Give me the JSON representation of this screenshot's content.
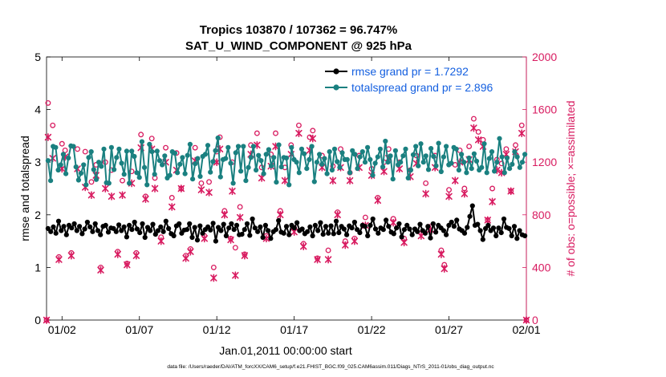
{
  "chart_data": {
    "type": "line",
    "title_line1": "Tropics 103870 / 107362 = 96.747%",
    "title_line2": "SAT_U_WIND_COMPONENT @ 925 hPa",
    "xlabel": "Jan.01,2011 00:00:00 start",
    "ylabel_left": "rmse and totalspread",
    "ylabel_right": "# of obs: o=possible; ×=assimilated",
    "footer": "data file: /Users/raeder/DAI/ATM_forcXX/CAM6_setup/f.e21.FHIST_BGC.f09_025.CAM6assim.011/Diags_NTrS_2011-01/obs_diag_output.nc",
    "xlim": [
      0,
      31
    ],
    "ylim_left": [
      0,
      5
    ],
    "ylim_right": [
      0,
      2000
    ],
    "x_ticks": [
      {
        "v": 1,
        "label": "01/02"
      },
      {
        "v": 6,
        "label": "01/07"
      },
      {
        "v": 11,
        "label": "01/12"
      },
      {
        "v": 16,
        "label": "01/17"
      },
      {
        "v": 21,
        "label": "01/22"
      },
      {
        "v": 26,
        "label": "01/27"
      },
      {
        "v": 31,
        "label": "02/01"
      }
    ],
    "y_ticks_left": [
      "0",
      "1",
      "2",
      "3",
      "4",
      "5"
    ],
    "y_ticks_right": [
      "0",
      "400",
      "800",
      "1200",
      "1600",
      "2000"
    ],
    "legend": [
      {
        "label": "rmse grand pr = 1.7292",
        "color": "#000000"
      },
      {
        "label": "totalspread grand pr = 2.896",
        "color": "#1a8080"
      }
    ],
    "series": [
      {
        "name": "rmse",
        "color": "#000000",
        "values": [
          1.74,
          1.68,
          1.77,
          1.65,
          1.88,
          1.7,
          1.78,
          1.62,
          1.8,
          1.75,
          1.83,
          1.7,
          1.78,
          1.64,
          1.73,
          1.86,
          1.77,
          1.68,
          1.83,
          1.7,
          1.62,
          1.78,
          1.8,
          1.67,
          1.75,
          1.74,
          1.68,
          1.81,
          1.7,
          1.77,
          1.58,
          1.8,
          1.72,
          1.86,
          1.73,
          1.66,
          1.83,
          1.57,
          1.76,
          1.7,
          1.82,
          1.63,
          1.7,
          1.77,
          1.68,
          1.88,
          1.74,
          1.64,
          1.6,
          1.79,
          1.83,
          1.65,
          1.71,
          1.72,
          1.83,
          1.57,
          1.76,
          1.52,
          1.79,
          1.65,
          1.72,
          1.77,
          1.71,
          1.84,
          1.5,
          1.76,
          1.7,
          1.82,
          1.6,
          1.75,
          1.83,
          1.72,
          1.8,
          1.62,
          1.63,
          1.72,
          1.83,
          1.61,
          1.92,
          1.75,
          1.68,
          1.77,
          1.57,
          1.8,
          1.7,
          1.55,
          1.68,
          1.72,
          1.89,
          1.67,
          1.65,
          1.78,
          1.62,
          1.8,
          1.75,
          1.85,
          1.7,
          1.73,
          1.64,
          1.68,
          1.77,
          1.6,
          1.8,
          1.7,
          1.85,
          1.63,
          1.78,
          1.65,
          1.79,
          1.64,
          1.88,
          1.66,
          1.78,
          1.73,
          1.62,
          1.79,
          1.75,
          1.86,
          1.72,
          1.66,
          1.8,
          1.78,
          1.6,
          1.8,
          1.92,
          1.73,
          1.65,
          1.75,
          1.72,
          1.9,
          1.78,
          1.67,
          1.64,
          1.75,
          1.83,
          1.58,
          1.72,
          1.8,
          1.73,
          1.62,
          1.73,
          1.68,
          1.82,
          1.7,
          1.65,
          1.78,
          1.56,
          1.83,
          1.67,
          1.8,
          1.75,
          1.7,
          1.62,
          1.8,
          1.86,
          1.78,
          1.9,
          1.73,
          1.7,
          1.65,
          1.76,
          1.97,
          2.17,
          1.8,
          1.82,
          1.7,
          1.53,
          1.74,
          1.8,
          1.7,
          1.75,
          1.6,
          1.75,
          1.66,
          1.92,
          1.76,
          1.74,
          1.6,
          1.78,
          1.55,
          1.7,
          1.62,
          1.6
        ]
      },
      {
        "name": "totalspread",
        "color": "#1a8080",
        "values": [
          3.03,
          2.65,
          3.3,
          3.28,
          2.85,
          2.95,
          3.15,
          2.78,
          3.08,
          3.31,
          3.3,
          2.91,
          2.66,
          2.79,
          2.95,
          2.57,
          3.09,
          3.2,
          2.86,
          2.67,
          3.0,
          2.92,
          3.25,
          2.61,
          2.6,
          3.28,
          2.86,
          3.09,
          3.25,
          2.98,
          2.77,
          3.21,
          2.6,
          3.21,
          3.11,
          2.8,
          2.71,
          3.39,
          2.9,
          2.57,
          3.34,
          3.2,
          2.77,
          3.21,
          3.03,
          2.95,
          3.12,
          2.7,
          2.75,
          3.2,
          3.17,
          2.8,
          2.96,
          3.09,
          2.78,
          3.13,
          3.34,
          2.68,
          2.97,
          3.07,
          2.73,
          3.11,
          3.15,
          3.32,
          2.81,
          3.01,
          3.22,
          3.46,
          2.72,
          3.05,
          3.07,
          3.28,
          2.98,
          2.6,
          3.18,
          3.3,
          2.83,
          3.3,
          2.65,
          2.9,
          3.09,
          3.3,
          2.85,
          3.13,
          3.03,
          2.78,
          3.15,
          3.24,
          2.93,
          3.09,
          2.62,
          3.33,
          2.91,
          3.09,
          3.08,
          2.57,
          3.28,
          3.05,
          3.0,
          2.8,
          3.25,
          3.16,
          2.88,
          3.05,
          3.3,
          2.63,
          3.0,
          3.15,
          2.96,
          3.07,
          2.78,
          3.2,
          2.85,
          3.25,
          3.01,
          2.9,
          3.18,
          3.05,
          3.05,
          2.8,
          3.22,
          3.15,
          2.88,
          3.1,
          3.2,
          3.0,
          3.28,
          3.05,
          2.75,
          2.98,
          3.1,
          3.25,
          2.91,
          3.4,
          3.0,
          3.12,
          2.68,
          3.22,
          2.95,
          3.0,
          3.12,
          3.25,
          2.7,
          2.85,
          3.14,
          3.3,
          2.93,
          3.35,
          3.0,
          3.12,
          2.86,
          3.26,
          3.11,
          2.93,
          3.36,
          2.82,
          3.1,
          3.3,
          2.95,
          2.98,
          3.28,
          3.25,
          2.85,
          3.15,
          3.0,
          2.8,
          3.08,
          2.88,
          3.16,
          3.02,
          2.85,
          2.9,
          3.35,
          2.8,
          3.07,
          3.2,
          2.83,
          3.0,
          3.45,
          3.1,
          2.8,
          3.08,
          2.88,
          2.96,
          3.2,
          3.1,
          2.9,
          3.0,
          3.15
        ]
      }
    ],
    "obs_possible": [
      [
        0.0,
        0
      ],
      [
        0.1,
        1650
      ],
      [
        0.4,
        1480
      ],
      [
        0.8,
        480
      ],
      [
        1.0,
        1340
      ],
      [
        1.2,
        1290
      ],
      [
        1.6,
        510
      ],
      [
        2.0,
        1300
      ],
      [
        2.5,
        1280
      ],
      [
        2.9,
        1050
      ],
      [
        3.2,
        1180
      ],
      [
        3.5,
        400
      ],
      [
        3.8,
        1200
      ],
      [
        4.2,
        1140
      ],
      [
        4.6,
        520
      ],
      [
        4.9,
        1060
      ],
      [
        5.2,
        430
      ],
      [
        5.5,
        1130
      ],
      [
        5.8,
        510
      ],
      [
        6.1,
        1410
      ],
      [
        6.4,
        940
      ],
      [
        6.8,
        1380
      ],
      [
        7.0,
        1080
      ],
      [
        7.4,
        630
      ],
      [
        7.7,
        1310
      ],
      [
        8.1,
        930
      ],
      [
        8.4,
        1270
      ],
      [
        8.7,
        1000
      ],
      [
        9.0,
        490
      ],
      [
        9.3,
        540
      ],
      [
        9.6,
        1310
      ],
      [
        10.0,
        1040
      ],
      [
        10.2,
        640
      ],
      [
        10.5,
        1050
      ],
      [
        10.8,
        400
      ],
      [
        11.0,
        1280
      ],
      [
        11.2,
        1390
      ],
      [
        11.5,
        830
      ],
      [
        11.9,
        620
      ],
      [
        12.0,
        1200
      ],
      [
        12.2,
        550
      ],
      [
        12.5,
        860
      ],
      [
        12.8,
        500
      ],
      [
        13.2,
        1330
      ],
      [
        13.6,
        1420
      ],
      [
        13.9,
        1160
      ],
      [
        14.2,
        640
      ],
      [
        14.5,
        1260
      ],
      [
        14.8,
        1420
      ],
      [
        15.1,
        830
      ],
      [
        15.4,
        1160
      ],
      [
        15.8,
        1330
      ],
      [
        16.0,
        700
      ],
      [
        16.3,
        1480
      ],
      [
        16.6,
        580
      ],
      [
        17.0,
        1390
      ],
      [
        17.2,
        1440
      ],
      [
        17.5,
        470
      ],
      [
        17.8,
        1250
      ],
      [
        18.2,
        530
      ],
      [
        18.5,
        1170
      ],
      [
        18.8,
        820
      ],
      [
        19.0,
        1300
      ],
      [
        19.3,
        600
      ],
      [
        19.6,
        1120
      ],
      [
        19.9,
        620
      ],
      [
        20.2,
        1250
      ],
      [
        20.6,
        780
      ],
      [
        21.0,
        1150
      ],
      [
        21.4,
        930
      ],
      [
        21.8,
        1200
      ],
      [
        22.1,
        1300
      ],
      [
        22.4,
        770
      ],
      [
        22.8,
        1200
      ],
      [
        23.1,
        620
      ],
      [
        23.5,
        1140
      ],
      [
        23.9,
        1250
      ],
      [
        24.2,
        660
      ],
      [
        24.5,
        1040
      ],
      [
        24.8,
        710
      ],
      [
        25.1,
        1250
      ],
      [
        25.5,
        530
      ],
      [
        25.7,
        420
      ],
      [
        26.0,
        990
      ],
      [
        26.4,
        1180
      ],
      [
        26.7,
        1290
      ],
      [
        27.0,
        1000
      ],
      [
        27.3,
        1320
      ],
      [
        27.6,
        1530
      ],
      [
        27.9,
        1430
      ],
      [
        28.2,
        1370
      ],
      [
        28.5,
        760
      ],
      [
        28.8,
        1000
      ],
      [
        29.1,
        1220
      ],
      [
        29.4,
        1190
      ],
      [
        29.7,
        1300
      ],
      [
        30.0,
        980
      ],
      [
        30.3,
        1330
      ],
      [
        30.7,
        1480
      ],
      [
        31.0,
        0
      ]
    ],
    "obs_assimilated": [
      [
        0.0,
        0
      ],
      [
        0.1,
        1390
      ],
      [
        0.4,
        1230
      ],
      [
        0.8,
        460
      ],
      [
        1.0,
        1150
      ],
      [
        1.2,
        1240
      ],
      [
        1.6,
        490
      ],
      [
        2.0,
        1150
      ],
      [
        2.5,
        1010
      ],
      [
        2.9,
        950
      ],
      [
        3.2,
        1100
      ],
      [
        3.5,
        380
      ],
      [
        3.8,
        1000
      ],
      [
        4.2,
        940
      ],
      [
        4.6,
        500
      ],
      [
        4.9,
        950
      ],
      [
        5.2,
        420
      ],
      [
        5.5,
        1040
      ],
      [
        5.8,
        490
      ],
      [
        6.1,
        1310
      ],
      [
        6.4,
        920
      ],
      [
        6.8,
        1300
      ],
      [
        7.0,
        1000
      ],
      [
        7.4,
        600
      ],
      [
        7.7,
        1200
      ],
      [
        8.1,
        860
      ],
      [
        8.4,
        1140
      ],
      [
        8.7,
        1000
      ],
      [
        9.0,
        470
      ],
      [
        9.3,
        520
      ],
      [
        9.6,
        1210
      ],
      [
        10.0,
        990
      ],
      [
        10.2,
        620
      ],
      [
        10.5,
        970
      ],
      [
        10.8,
        320
      ],
      [
        11.0,
        1200
      ],
      [
        11.2,
        1300
      ],
      [
        11.5,
        800
      ],
      [
        11.9,
        610
      ],
      [
        12.0,
        980
      ],
      [
        12.2,
        340
      ],
      [
        12.5,
        780
      ],
      [
        12.8,
        490
      ],
      [
        13.2,
        1260
      ],
      [
        13.6,
        1330
      ],
      [
        13.9,
        1080
      ],
      [
        14.2,
        620
      ],
      [
        14.5,
        1170
      ],
      [
        14.8,
        1320
      ],
      [
        15.1,
        800
      ],
      [
        15.4,
        1060
      ],
      [
        15.8,
        1260
      ],
      [
        16.0,
        670
      ],
      [
        16.3,
        1420
      ],
      [
        16.6,
        560
      ],
      [
        17.0,
        1290
      ],
      [
        17.2,
        1380
      ],
      [
        17.5,
        460
      ],
      [
        17.8,
        1160
      ],
      [
        18.2,
        460
      ],
      [
        18.5,
        1060
      ],
      [
        18.8,
        800
      ],
      [
        19.0,
        1160
      ],
      [
        19.3,
        570
      ],
      [
        19.6,
        1060
      ],
      [
        19.9,
        600
      ],
      [
        20.2,
        1160
      ],
      [
        20.6,
        720
      ],
      [
        21.0,
        1100
      ],
      [
        21.4,
        910
      ],
      [
        21.8,
        1130
      ],
      [
        22.1,
        1230
      ],
      [
        22.4,
        740
      ],
      [
        22.8,
        1150
      ],
      [
        23.1,
        590
      ],
      [
        23.5,
        1090
      ],
      [
        23.9,
        1190
      ],
      [
        24.2,
        640
      ],
      [
        24.5,
        960
      ],
      [
        24.8,
        690
      ],
      [
        25.1,
        1160
      ],
      [
        25.5,
        500
      ],
      [
        25.7,
        390
      ],
      [
        26.0,
        940
      ],
      [
        26.4,
        1060
      ],
      [
        26.7,
        1200
      ],
      [
        27.0,
        960
      ],
      [
        27.3,
        1220
      ],
      [
        27.6,
        1460
      ],
      [
        27.9,
        1370
      ],
      [
        28.2,
        1320
      ],
      [
        28.5,
        760
      ],
      [
        28.8,
        900
      ],
      [
        29.1,
        1140
      ],
      [
        29.4,
        1120
      ],
      [
        29.7,
        1260
      ],
      [
        30.0,
        980
      ],
      [
        30.3,
        1280
      ],
      [
        30.7,
        1420
      ],
      [
        31.0,
        0
      ]
    ]
  }
}
